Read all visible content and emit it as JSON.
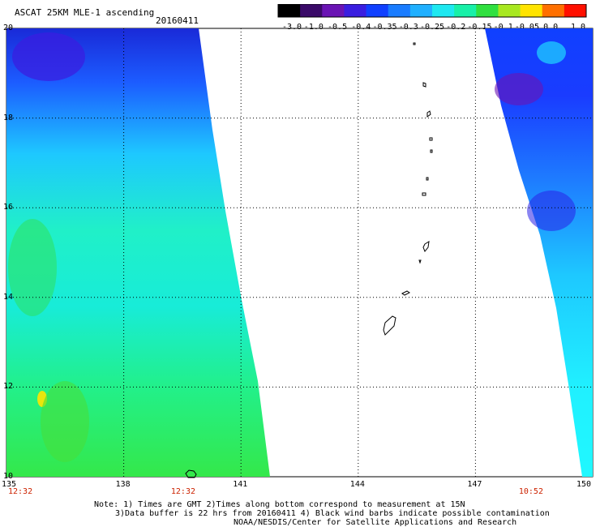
{
  "header": {
    "title": "ASCAT 25KM MLE-1 ascending",
    "date": "20160411"
  },
  "colorbar": {
    "labels": [
      "-3.0",
      "-1.0",
      "-0.5",
      "-0.4",
      "-0.35",
      "-0.3",
      "-0.25",
      "-0.2",
      "-0.15",
      "-0.1",
      "-0.05",
      "0.0",
      "1.0"
    ],
    "colors": [
      "#000000",
      "#3a0a68",
      "#6a14b4",
      "#3a1ee0",
      "#1040ff",
      "#1a7cff",
      "#20b0ff",
      "#1ee8f0",
      "#18f0a8",
      "#30e040",
      "#a8e820",
      "#ffe400",
      "#ff7000",
      "#ff1000"
    ]
  },
  "map": {
    "lat_labels": [
      "20",
      "18",
      "16",
      "14",
      "12",
      "10"
    ],
    "lon_labels": [
      "135",
      "138",
      "141",
      "144",
      "147",
      "150"
    ],
    "time_labels": [
      {
        "lon": "135",
        "text": "12:32"
      },
      {
        "lon": "139.5",
        "text": "12:32"
      },
      {
        "lon": "148.4",
        "text": "10:52"
      }
    ],
    "time_color": "#cc2200"
  },
  "footer": {
    "line1": "Note: 1) Times are GMT 2)Times along bottom correspond to measurement at 15N",
    "line2": "3)Data buffer is 22 hrs from 20160411 4) Black wind barbs indicate possible contamination",
    "line3": "NOAA/NESDIS/Center for Satellite Applications and Research"
  }
}
